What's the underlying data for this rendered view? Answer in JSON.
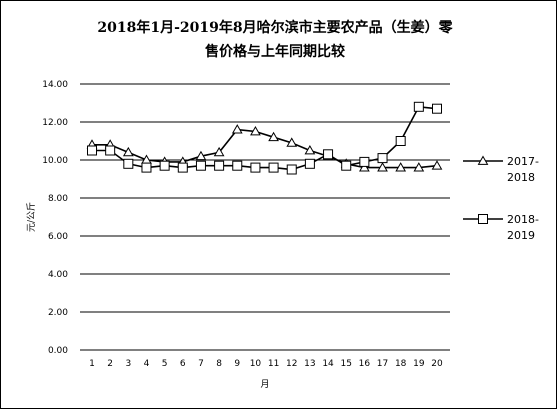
{
  "chart_data": {
    "type": "line",
    "title_line1": "2018年1月-2019年8月哈尔滨市主要农产品（生姜）零",
    "title_line2": "售价格与上年同期比较",
    "xlabel": "月",
    "ylabel": "元/公斤",
    "categories": [
      "1",
      "2",
      "3",
      "4",
      "5",
      "6",
      "7",
      "8",
      "9",
      "10",
      "11",
      "12",
      "13",
      "14",
      "15",
      "16",
      "17",
      "18",
      "19",
      "20"
    ],
    "ylim": [
      0,
      14
    ],
    "yticks": [
      "0.00",
      "2.00",
      "4.00",
      "6.00",
      "8.00",
      "10.00",
      "12.00",
      "14.00"
    ],
    "grid": true,
    "legend_position": "right",
    "series": [
      {
        "name_line1": "2017-",
        "name_line2": "2018",
        "marker": "triangle",
        "values": [
          10.8,
          10.8,
          10.4,
          10.0,
          9.9,
          9.9,
          10.2,
          10.4,
          11.6,
          11.5,
          11.2,
          10.9,
          10.5,
          10.2,
          9.8,
          9.6,
          9.6,
          9.6,
          9.6,
          9.7
        ]
      },
      {
        "name_line1": "2018-",
        "name_line2": "2019",
        "marker": "square",
        "values": [
          10.5,
          10.5,
          9.8,
          9.6,
          9.7,
          9.6,
          9.7,
          9.7,
          9.7,
          9.6,
          9.6,
          9.5,
          9.8,
          10.3,
          9.7,
          9.9,
          10.1,
          11.0,
          12.8,
          12.7
        ]
      }
    ]
  }
}
